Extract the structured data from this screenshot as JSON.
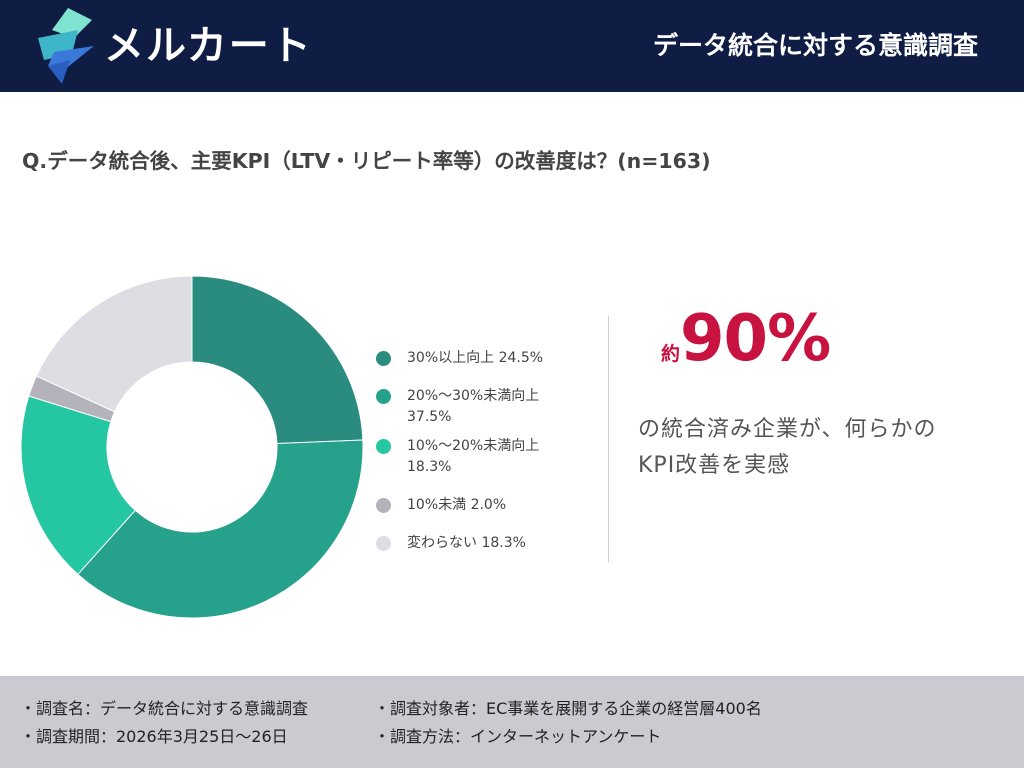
{
  "header": {
    "brand_name": "メルカート",
    "title": "データ統合に対する意識調査"
  },
  "question": "Q.データ統合後、主要KPI（LTV・リピート率等）の改善度は？(n=163)",
  "chart_data": {
    "type": "pie",
    "donut": true,
    "start_angle": "top",
    "direction": "clockwise",
    "legend_position": "right",
    "series": [
      {
        "label": "30%以上向上",
        "value": 24.5,
        "color": "#2a8c7e"
      },
      {
        "label": "20%〜30%未満向上",
        "value": 37.5,
        "color": "#26a18b"
      },
      {
        "label": "10%〜20%未満向上",
        "value": 18.3,
        "color": "#24c7a2"
      },
      {
        "label": "10%未満",
        "value": 2.0,
        "color": "#b4b3bc"
      },
      {
        "label": "変わらない",
        "value": 18.3,
        "color": "#dddde3"
      }
    ]
  },
  "legend": [
    {
      "label": "30%以上向上 24.5%",
      "color": "#2a8c7e"
    },
    {
      "label": "20%〜30%未満向上 37.5%",
      "color": "#26a18b"
    },
    {
      "label": "10%〜20%未満向上 18.3%",
      "color": "#24c7a2"
    },
    {
      "label": "10%未満 2.0%",
      "color": "#b4b3bc"
    },
    {
      "label": "変わらない 18.3%",
      "color": "#dddde3"
    }
  ],
  "highlight": {
    "prefix": "約",
    "value": "90%",
    "line1": "の統合済み企業が、何らかの",
    "line2": "KPI改善を実感"
  },
  "footer": {
    "survey_name": "・調査名：データ統合に対する意識調査",
    "survey_target": "・調査対象者：EC事業を展開する企業の経営層400名",
    "survey_period": "・調査期間：2026年3月25日〜26日",
    "survey_method": "・調査方法：インターネットアンケート"
  },
  "colors": {
    "header_bg": "#0f1c44",
    "accent_red": "#c8123f",
    "footer_bg": "#c9cbd1"
  }
}
